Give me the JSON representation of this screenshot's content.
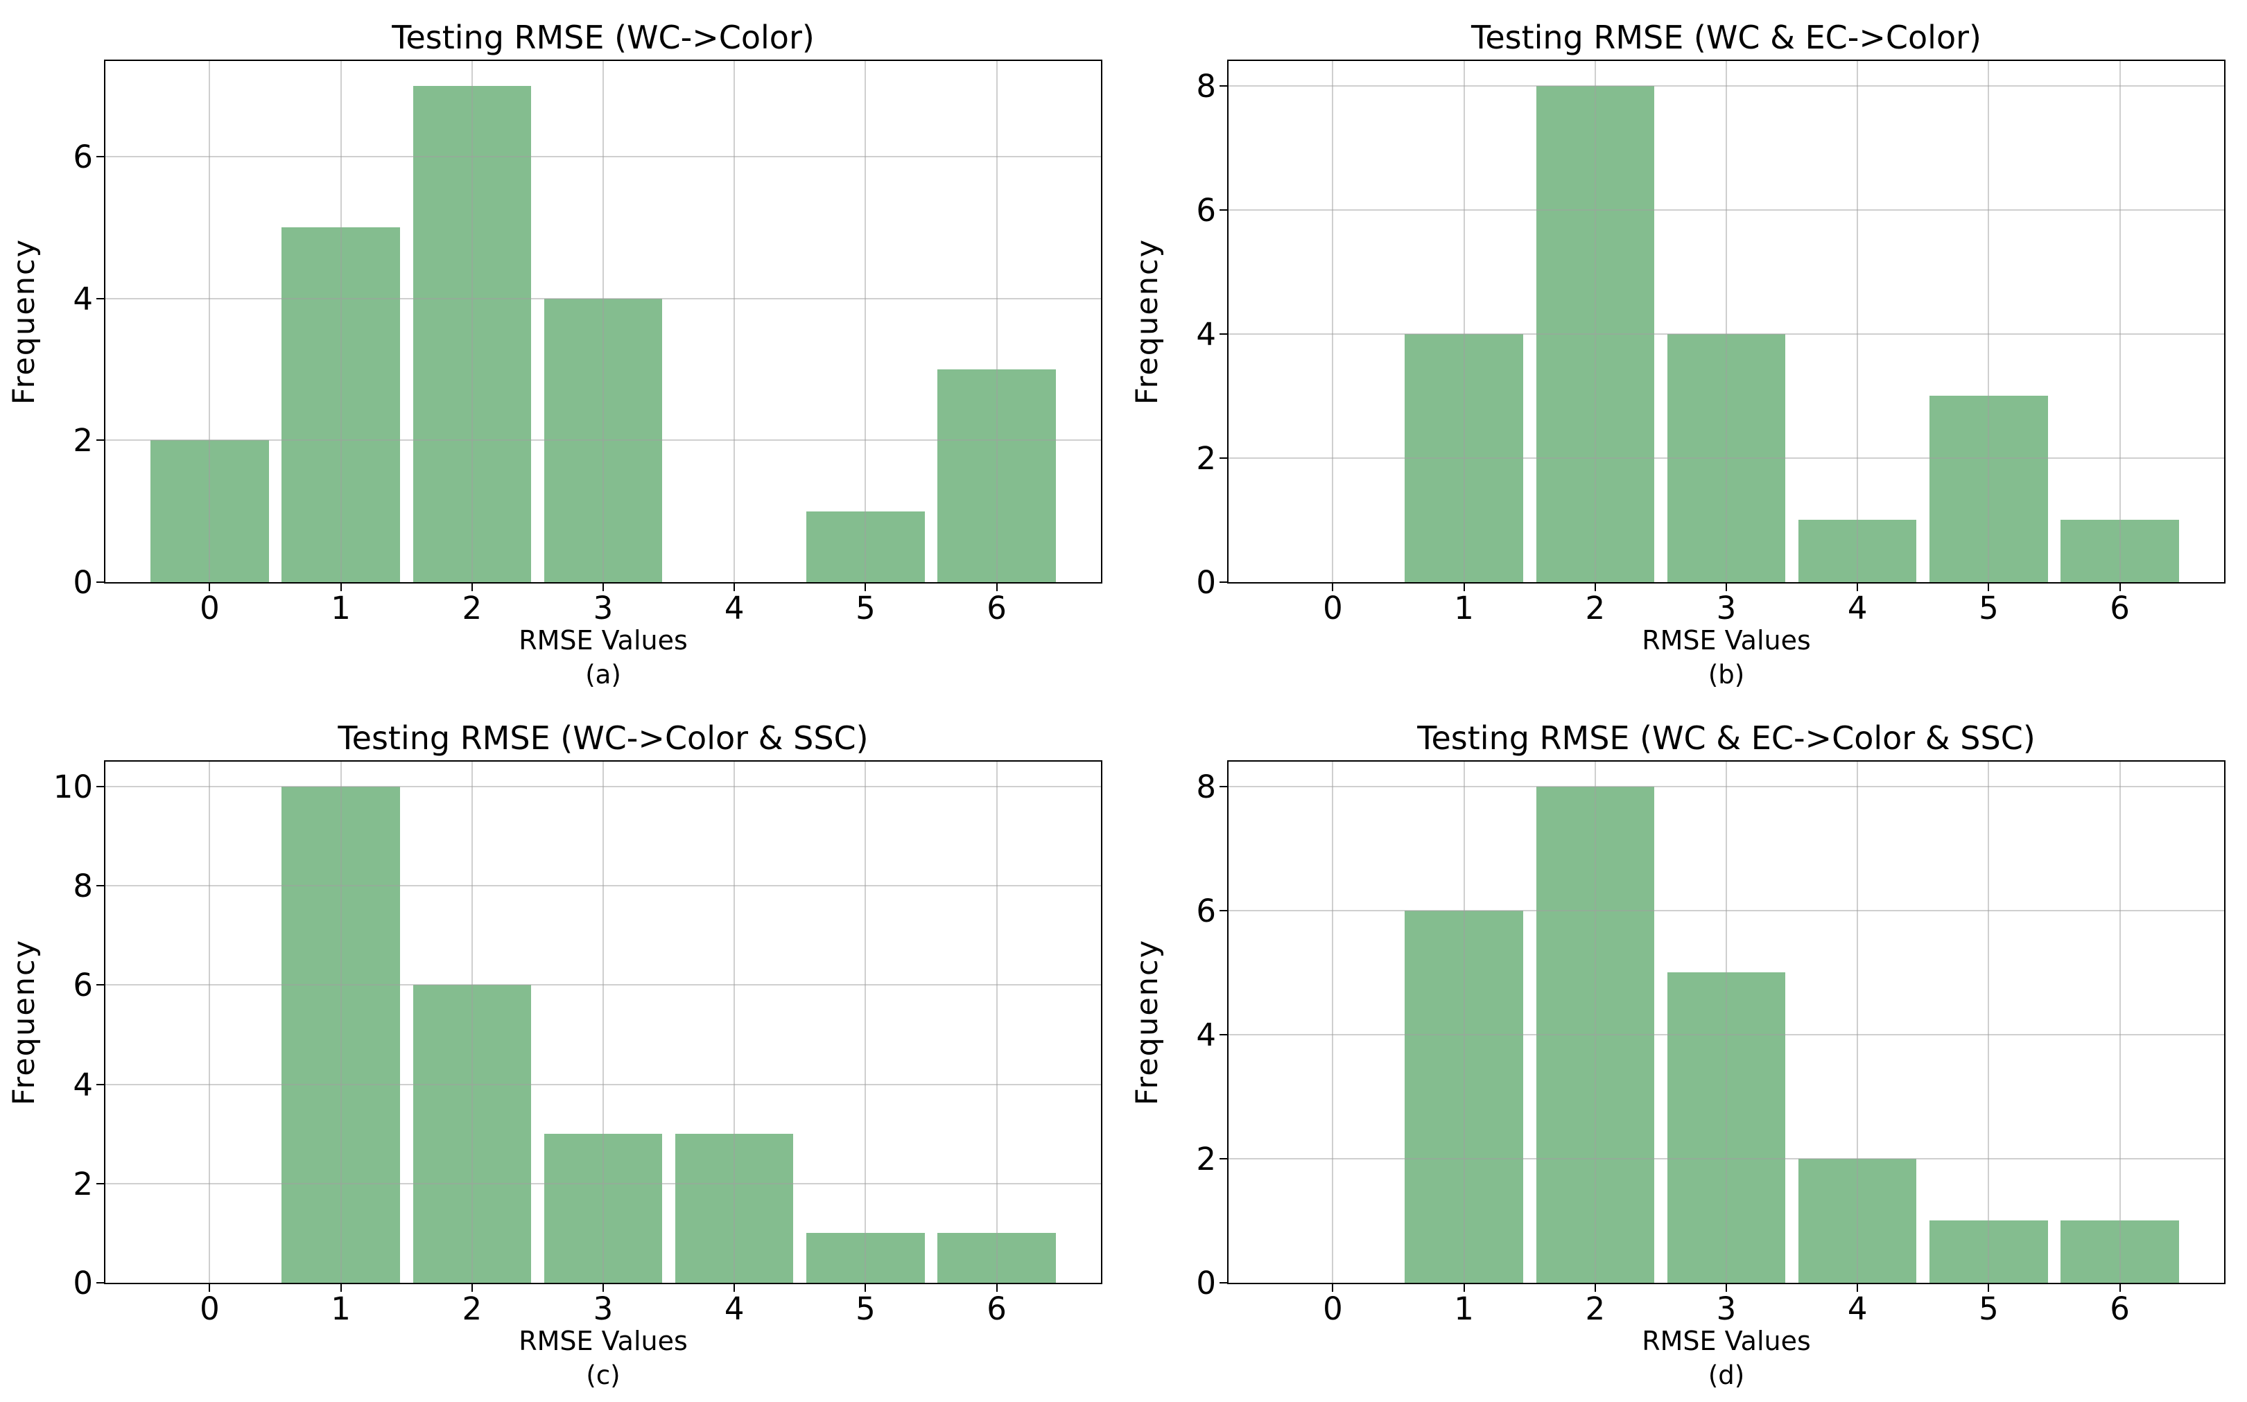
{
  "figure": {
    "background": "#ffffff",
    "bar_color": "#84bd8f",
    "grid_color": "#a0a0a0",
    "spine_color": "#000000",
    "text_color": "#000000"
  },
  "chart_data": [
    {
      "type": "bar",
      "panel": "a",
      "title": "Testing RMSE (WC->Color)",
      "xlabel": "RMSE Values",
      "ylabel": "Frequency",
      "caption": "(a)",
      "categories": [
        0,
        1,
        2,
        3,
        4,
        5,
        6
      ],
      "values": [
        2,
        5,
        7,
        4,
        0,
        1,
        3
      ],
      "xticks": [
        0,
        1,
        2,
        3,
        4,
        5,
        6
      ],
      "yticks": [
        0,
        2,
        4,
        6
      ],
      "xlim": [
        -0.795,
        6.795
      ],
      "ylim": [
        0,
        7.35
      ],
      "bar_width": 0.9,
      "grid": "on",
      "legend": "none"
    },
    {
      "type": "bar",
      "panel": "b",
      "title": "Testing RMSE (WC & EC->Color)",
      "xlabel": "RMSE Values",
      "ylabel": "Frequency",
      "caption": "(b)",
      "categories": [
        0,
        1,
        2,
        3,
        4,
        5,
        6
      ],
      "values": [
        0,
        4,
        8,
        4,
        1,
        3,
        1
      ],
      "xticks": [
        0,
        1,
        2,
        3,
        4,
        5,
        6
      ],
      "yticks": [
        0,
        2,
        4,
        6,
        8
      ],
      "xlim": [
        -0.795,
        6.795
      ],
      "ylim": [
        0,
        8.4
      ],
      "bar_width": 0.9,
      "grid": "on",
      "legend": "none"
    },
    {
      "type": "bar",
      "panel": "c",
      "title": "Testing RMSE (WC->Color & SSC)",
      "xlabel": "RMSE Values",
      "ylabel": "Frequency",
      "caption": "(c)",
      "categories": [
        0,
        1,
        2,
        3,
        4,
        5,
        6
      ],
      "values": [
        0,
        10,
        6,
        3,
        3,
        1,
        1
      ],
      "xticks": [
        0,
        1,
        2,
        3,
        4,
        5,
        6
      ],
      "yticks": [
        0,
        2,
        4,
        6,
        8,
        10
      ],
      "xlim": [
        -0.795,
        6.795
      ],
      "ylim": [
        0,
        10.5
      ],
      "bar_width": 0.9,
      "grid": "on",
      "legend": "none"
    },
    {
      "type": "bar",
      "panel": "d",
      "title": "Testing RMSE (WC & EC->Color & SSC)",
      "xlabel": "RMSE Values",
      "ylabel": "Frequency",
      "caption": "(d)",
      "categories": [
        0,
        1,
        2,
        3,
        4,
        5,
        6
      ],
      "values": [
        0,
        6,
        8,
        5,
        2,
        1,
        1
      ],
      "xticks": [
        0,
        1,
        2,
        3,
        4,
        5,
        6
      ],
      "yticks": [
        0,
        2,
        4,
        6,
        8
      ],
      "xlim": [
        -0.795,
        6.795
      ],
      "ylim": [
        0,
        8.4
      ],
      "bar_width": 0.9,
      "grid": "on",
      "legend": "none"
    }
  ]
}
